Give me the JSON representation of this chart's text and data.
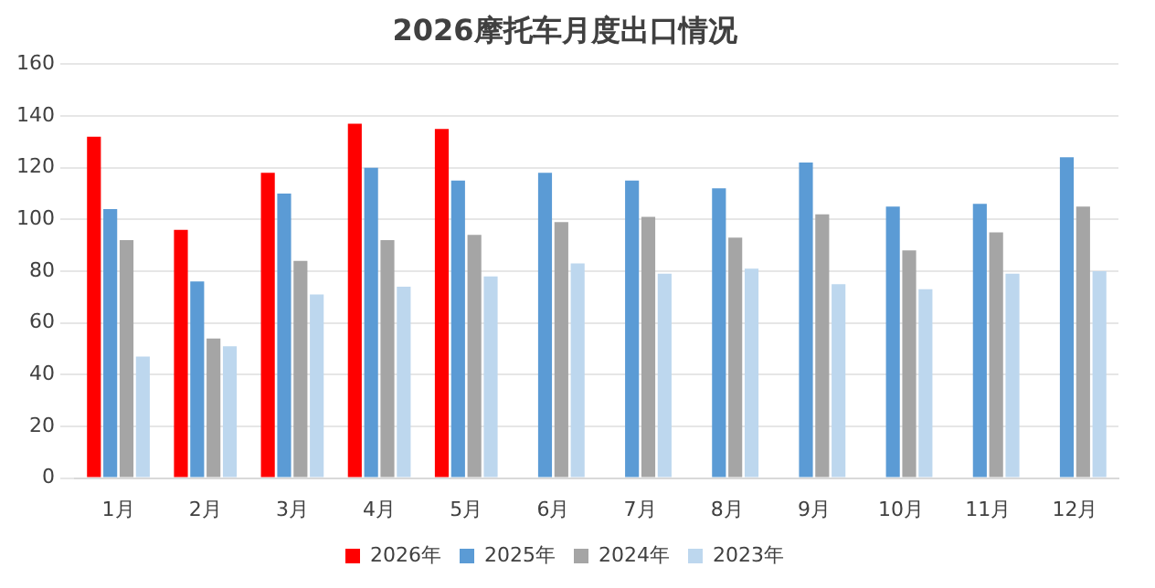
{
  "chart_data": {
    "type": "bar",
    "title": "2026摩托车月度出口情况",
    "categories": [
      "1月",
      "2月",
      "3月",
      "4月",
      "5月",
      "6月",
      "7月",
      "8月",
      "9月",
      "10月",
      "11月",
      "12月"
    ],
    "series": [
      {
        "name": "2026年",
        "color": "#ff0000",
        "values": [
          132,
          96,
          118,
          137,
          135,
          null,
          null,
          null,
          null,
          null,
          null,
          null
        ]
      },
      {
        "name": "2025年",
        "color": "#5b9bd5",
        "values": [
          104,
          76,
          110,
          120,
          115,
          118,
          115,
          112,
          122,
          105,
          106,
          124
        ]
      },
      {
        "name": "2024年",
        "color": "#a5a5a5",
        "values": [
          92,
          54,
          84,
          92,
          94,
          99,
          101,
          93,
          102,
          88,
          95,
          105
        ]
      },
      {
        "name": "2023年",
        "color": "#bdd7ee",
        "values": [
          47,
          51,
          71,
          74,
          78,
          83,
          79,
          81,
          75,
          73,
          79,
          80
        ]
      }
    ],
    "ylim": [
      0,
      160
    ],
    "yticks": [
      0,
      20,
      40,
      60,
      80,
      100,
      120,
      140,
      160
    ],
    "grid": "y",
    "legend": "bottom"
  }
}
